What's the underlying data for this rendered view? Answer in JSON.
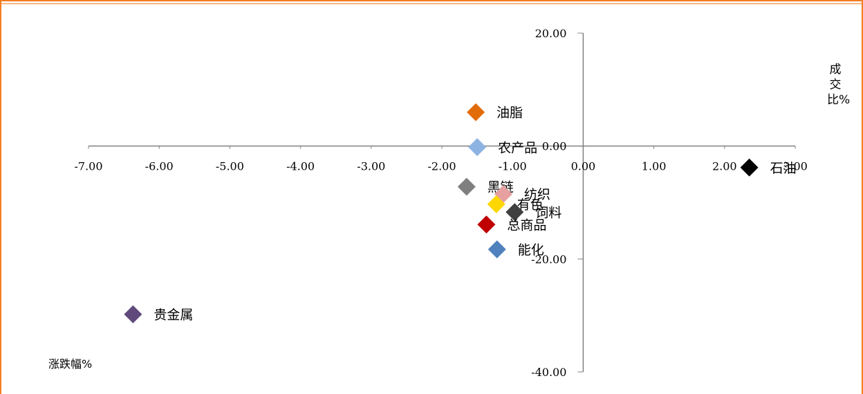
{
  "colors": {
    "border": "#f47d20",
    "axis": "#808080"
  },
  "chart_data": {
    "type": "scatter",
    "xlabel": "涨跌幅%",
    "ylabel": "成交比%",
    "xlim": [
      -7,
      3
    ],
    "ylim": [
      -40,
      20
    ],
    "grid": false,
    "x_ticks": [
      "-7.00",
      "-6.00",
      "-5.00",
      "-4.00",
      "-3.00",
      "-2.00",
      "-1.00",
      "0.00",
      "1.00",
      "2.00",
      "3.00"
    ],
    "y_ticks": [
      "20.00",
      "0.00",
      "-20.00",
      "-40.00"
    ],
    "points": [
      {
        "name": "油脂",
        "x": -1.52,
        "y": 6.0,
        "color": "#e36c0a"
      },
      {
        "name": "农产品",
        "x": -1.5,
        "y": -0.2,
        "color": "#8db3e2"
      },
      {
        "name": "石油",
        "x": 2.35,
        "y": -3.8,
        "color": "#000000"
      },
      {
        "name": "黑链",
        "x": -1.65,
        "y": -7.2,
        "color": "#7f7f7f"
      },
      {
        "name": "纺织",
        "x": -1.13,
        "y": -8.5,
        "color": "#e6a0a0"
      },
      {
        "name": "有色",
        "x": -1.23,
        "y": -10.3,
        "color": "#ffd700"
      },
      {
        "name": "饲料",
        "x": -0.97,
        "y": -11.7,
        "color": "#404040"
      },
      {
        "name": "总商品",
        "x": -1.37,
        "y": -13.9,
        "color": "#c00000"
      },
      {
        "name": "能化",
        "x": -1.22,
        "y": -18.3,
        "color": "#4f81bd"
      },
      {
        "name": "贵金属",
        "x": -6.37,
        "y": -29.8,
        "color": "#604a7b"
      }
    ]
  }
}
